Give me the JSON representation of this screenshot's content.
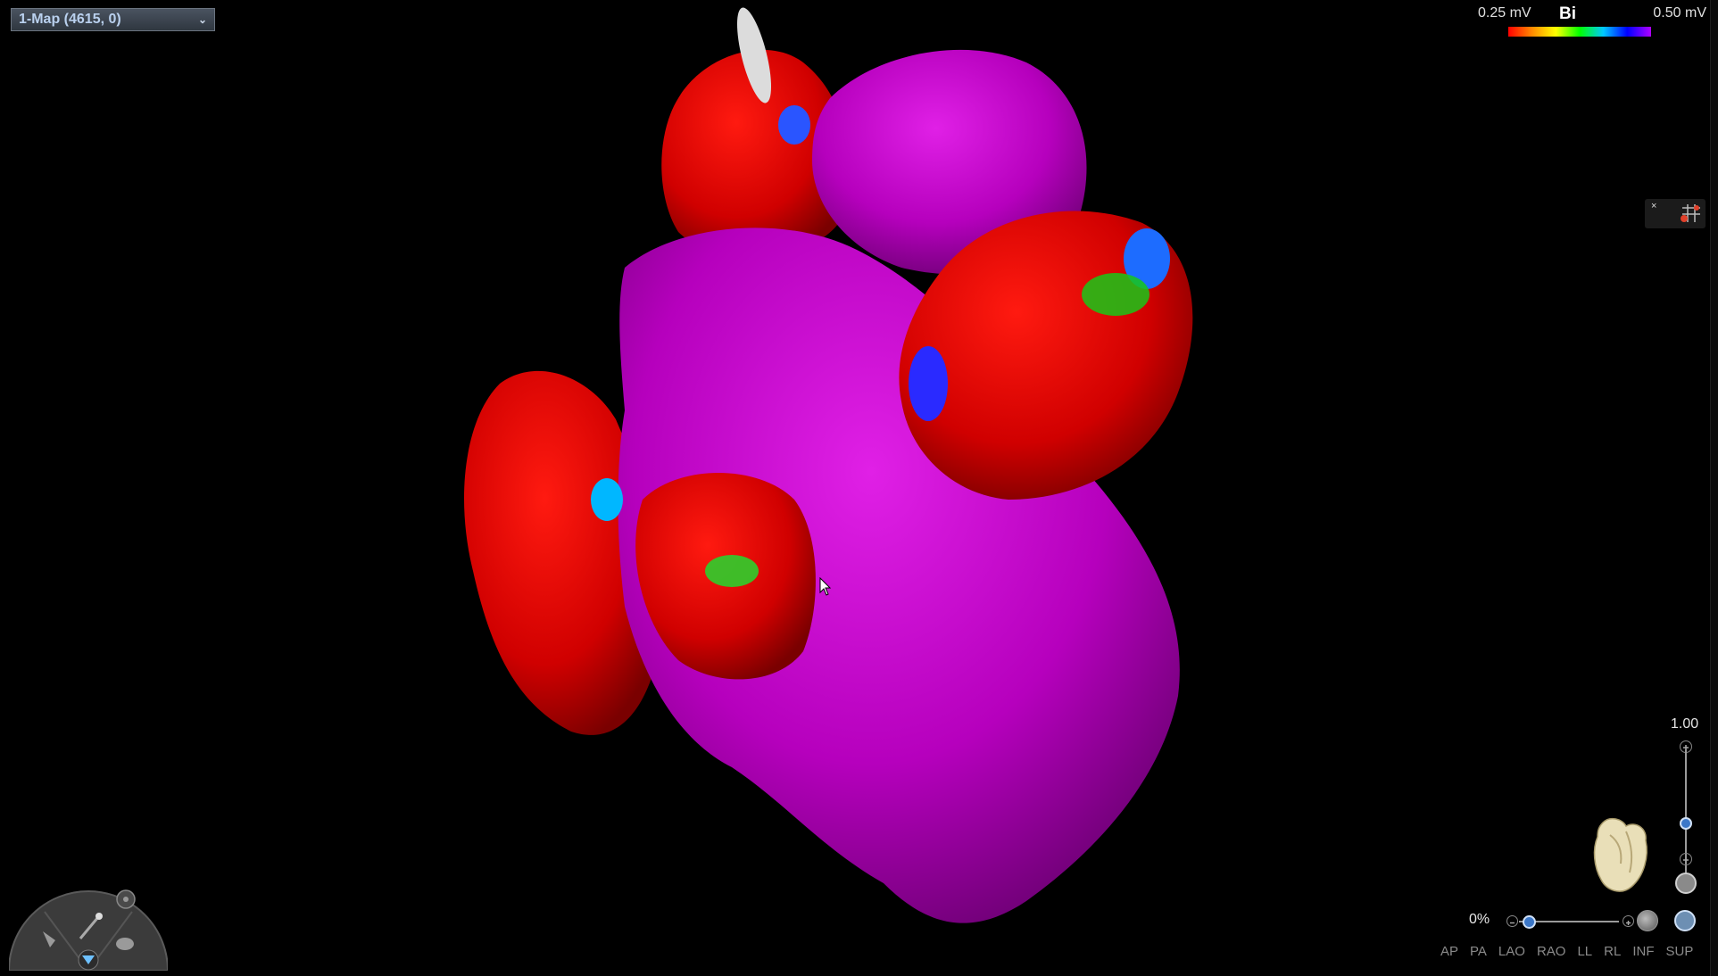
{
  "map_selector": {
    "label": "1-Map (4615, 0)",
    "chevron": "chevron-down-icon"
  },
  "legend": {
    "low_label": "0.25 mV",
    "mode_label": "Bi",
    "high_label": "0.50 mV",
    "colors": [
      "#ff0000",
      "#ff8a00",
      "#ffff00",
      "#00ff00",
      "#00c8ff",
      "#0000ff",
      "#b000ff"
    ]
  },
  "tool_panel": {
    "close_label": "×",
    "icon": "grid-tool-icon"
  },
  "zoom": {
    "value_label": "1.00",
    "plus_icon": "plus-icon",
    "minus_icon": "minus-icon"
  },
  "opacity": {
    "value_label": "0%"
  },
  "view_buttons": [
    "AP",
    "PA",
    "LAO",
    "RAO",
    "LL",
    "RL",
    "INF",
    "SUP"
  ],
  "radial_menu": {
    "icons": [
      "select-hand-icon",
      "magic-wand-icon",
      "pan-hand-icon",
      "settings-icon",
      "filter-icon"
    ]
  },
  "colors": {
    "magenta": "#c200c8",
    "red": "#cc0000",
    "background": "#000000"
  }
}
